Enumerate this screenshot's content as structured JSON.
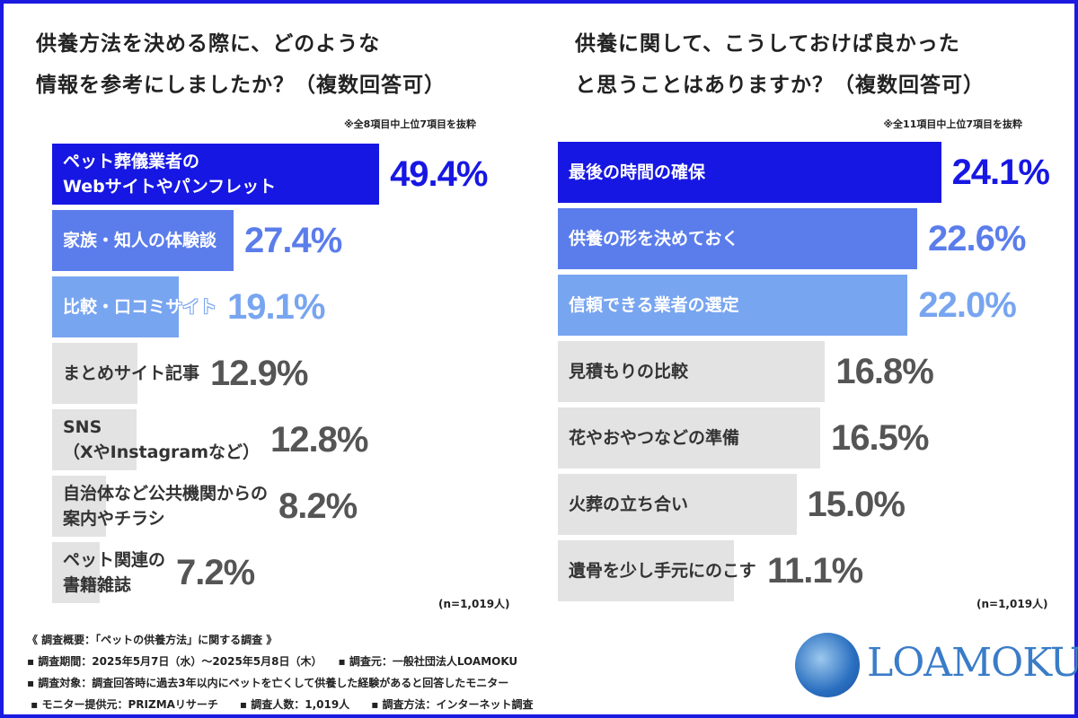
{
  "chart_data": [
    {
      "type": "bar",
      "orientation": "horizontal",
      "title": "供養方法を決める際に、どのような情報を参考にしましたか？（複数回答可）",
      "note": "※全8項目中上位7項目を抜粋",
      "sample": "(n=1,019人)",
      "categories": [
        "ペット葬儀業者の\nWebサイトやパンフレット",
        "家族・知人の体験談",
        "比較・口コミサイト",
        "まとめサイト記事",
        "SNS\n（XやInstagramなど）",
        "自治体など公共機関からの\n案内やチラシ",
        "ペット関連の\n書籍雑誌"
      ],
      "values": [
        49.4,
        27.4,
        19.1,
        12.9,
        12.8,
        8.2,
        7.2
      ],
      "labels": [
        "49.4%",
        "27.4%",
        "19.1%",
        "12.9%",
        "12.8%",
        "8.2%",
        "7.2%"
      ]
    },
    {
      "type": "bar",
      "orientation": "horizontal",
      "title": "供養に関して、こうしておけば良かったと思うことはありますか？（複数回答可）",
      "note": "※全11項目中上位7項目を抜粋",
      "sample": "(n=1,019人)",
      "categories": [
        "最後の時間の確保",
        "供養の形を決めておく",
        "信頼できる業者の選定",
        "見積もりの比較",
        "花やおやつなどの準備",
        "火葬の立ち合い",
        "遺骨を少し手元にのこす"
      ],
      "values": [
        24.1,
        22.6,
        22.0,
        16.8,
        16.5,
        15.0,
        11.1
      ],
      "labels": [
        "24.1%",
        "22.6%",
        "22.0%",
        "16.8%",
        "16.5%",
        "15.0%",
        "11.1%"
      ]
    }
  ],
  "titles": {
    "left1": "供養方法を決める際に、どのような",
    "left2": "情報を参考にしましたか？（複数回答可）",
    "right1": "供養に関して、こうしておけば良かった",
    "right2": "と思うことはありますか？（複数回答可）"
  },
  "colors": {
    "rank1": "#1717e3",
    "rank2": "#5b7deb",
    "rank3": "#78a5f0",
    "other": "#e3e3e3",
    "other_text": "#333333",
    "other_pct": "#555555",
    "frame": "#1a1ae0"
  },
  "footer": {
    "line1": "《 調査概要：「ペットの供養方法」に関する調査 》",
    "line2": "▪ 調査期間：2025年5月7日（水）～2025年5月8日（木）　　▪ 調査元：一般社団法人LOAMOKU",
    "line3": "▪ 調査対象：調査回答時に過去3年以内にペットを亡くして供養した経験があると回答したモニター",
    "line4": " ▪ モニター提供元：PRIZMAリサーチ　　▪ 調査人数：1,019人　　▪ 調査方法：インターネット調査"
  },
  "logo": {
    "text": "LOAMOKU"
  }
}
